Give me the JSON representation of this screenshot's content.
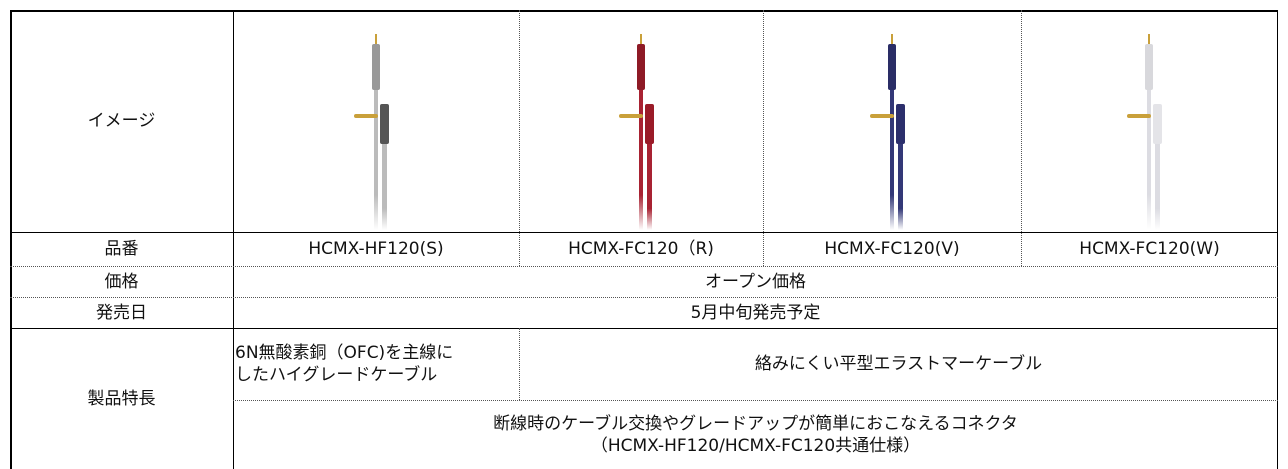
{
  "table": {
    "image_row": {
      "label": "イメージ"
    },
    "rows": [
      {
        "label": "品番",
        "cells": [
          "HCMX-HF120(S)",
          "HCMX-FC120（R)",
          "HCMX-FC120(V)",
          "HCMX-FC120(W)"
        ]
      },
      {
        "label": "価格",
        "cells": [
          "オープン価格"
        ]
      },
      {
        "label": "発売日",
        "cells": [
          "5月中旬発売予定"
        ]
      }
    ],
    "features": {
      "label": "製品特長",
      "cells": [
        [
          "6N無酸素銅（OFC)を主線に",
          "したハイグレードケーブル"
        ],
        [
          "絡みにくい平型エラストマーケーブル"
        ],
        [
          "断線時のケーブル交換やグレードアップが簡単におこなえるコネクタ",
          "（HCMX-HF120/HCMX-FC120共通仕様）"
        ]
      ]
    }
  }
}
